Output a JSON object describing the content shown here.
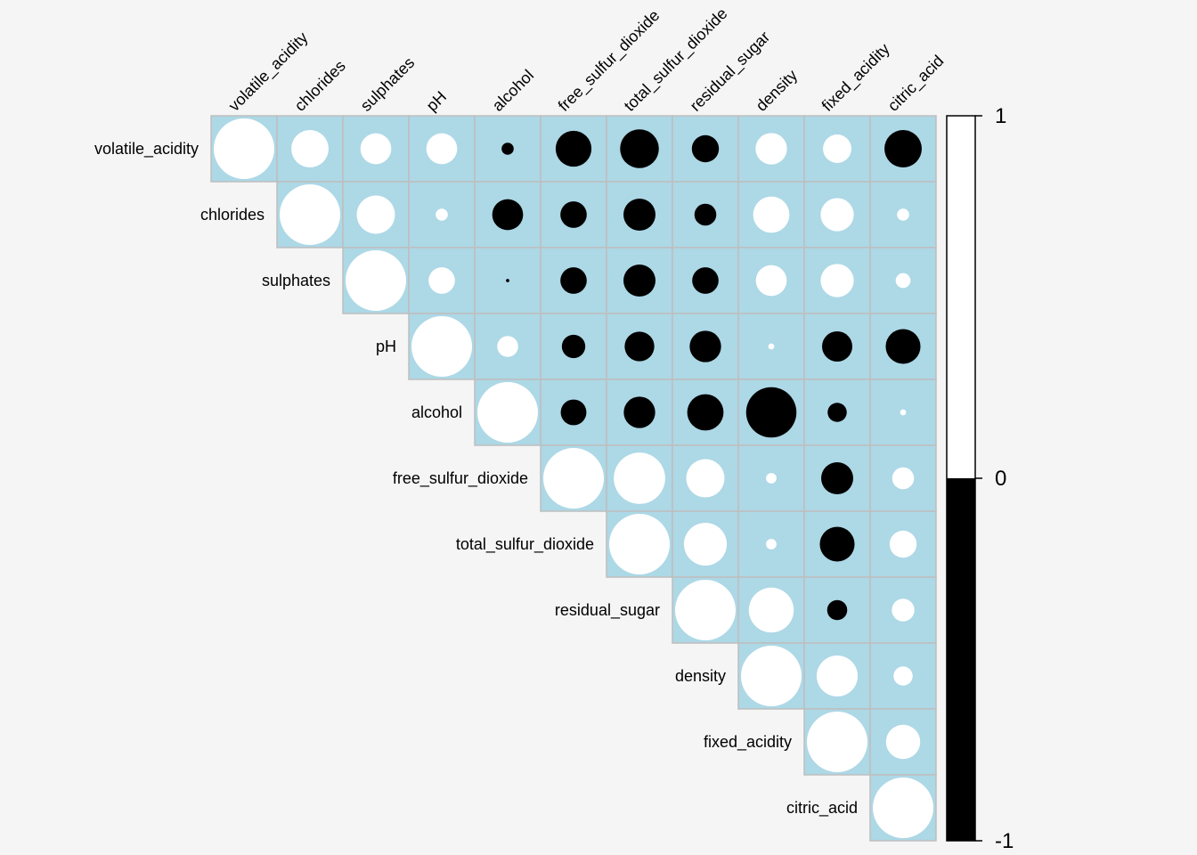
{
  "chart_data": {
    "type": "correlation-matrix-circles",
    "layout": "upper-triangle",
    "variables": [
      "volatile_acidity",
      "chlorides",
      "sulphates",
      "pH",
      "alcohol",
      "free_sulfur_dioxide",
      "total_sulfur_dioxide",
      "residual_sugar",
      "density",
      "fixed_acidity",
      "citric_acid"
    ],
    "matrix": [
      [
        1.0,
        0.38,
        0.26,
        0.26,
        -0.04,
        -0.35,
        -0.41,
        -0.2,
        0.27,
        0.22,
        -0.38
      ],
      [
        0.38,
        1.0,
        0.4,
        0.04,
        -0.26,
        -0.19,
        -0.28,
        -0.13,
        0.36,
        0.3,
        0.04
      ],
      [
        0.26,
        0.4,
        1.0,
        0.19,
        -0.003,
        -0.19,
        -0.28,
        -0.19,
        0.26,
        0.3,
        0.06
      ],
      [
        0.26,
        0.04,
        0.19,
        1.0,
        0.12,
        -0.15,
        -0.24,
        -0.27,
        0.01,
        -0.25,
        -0.33
      ],
      [
        -0.04,
        -0.26,
        -0.003,
        0.12,
        1.0,
        -0.18,
        -0.27,
        -0.36,
        -0.69,
        -0.1,
        0.01
      ],
      [
        -0.35,
        -0.19,
        -0.19,
        -0.15,
        -0.18,
        1.0,
        0.72,
        0.4,
        0.03,
        -0.28,
        0.13
      ],
      [
        -0.41,
        -0.28,
        -0.28,
        -0.24,
        -0.27,
        0.72,
        1.0,
        0.5,
        0.03,
        -0.33,
        0.2
      ],
      [
        -0.2,
        -0.13,
        -0.19,
        -0.27,
        -0.36,
        0.4,
        0.5,
        1.0,
        0.55,
        -0.11,
        0.14
      ],
      [
        0.27,
        0.36,
        0.26,
        0.01,
        -0.69,
        0.03,
        0.03,
        0.55,
        1.0,
        0.46,
        0.1
      ],
      [
        0.22,
        0.3,
        0.3,
        -0.25,
        -0.1,
        -0.28,
        -0.33,
        -0.11,
        0.46,
        1.0,
        0.32
      ],
      [
        -0.38,
        0.04,
        0.06,
        -0.33,
        0.01,
        0.13,
        0.2,
        0.14,
        0.1,
        0.32,
        1.0
      ]
    ],
    "value_range": [
      -1,
      1
    ],
    "colors": {
      "positive": "#ffffff",
      "negative": "#000000",
      "cell_background": "#add8e6",
      "cell_border": "#bebebe",
      "page_background": "#f5f5f5"
    },
    "legend": {
      "placement": "right",
      "tick_labels": [
        "1",
        "0",
        "-1"
      ],
      "tick_values": [
        1,
        0,
        -1
      ]
    },
    "title": "",
    "xlabel": "",
    "ylabel": ""
  }
}
